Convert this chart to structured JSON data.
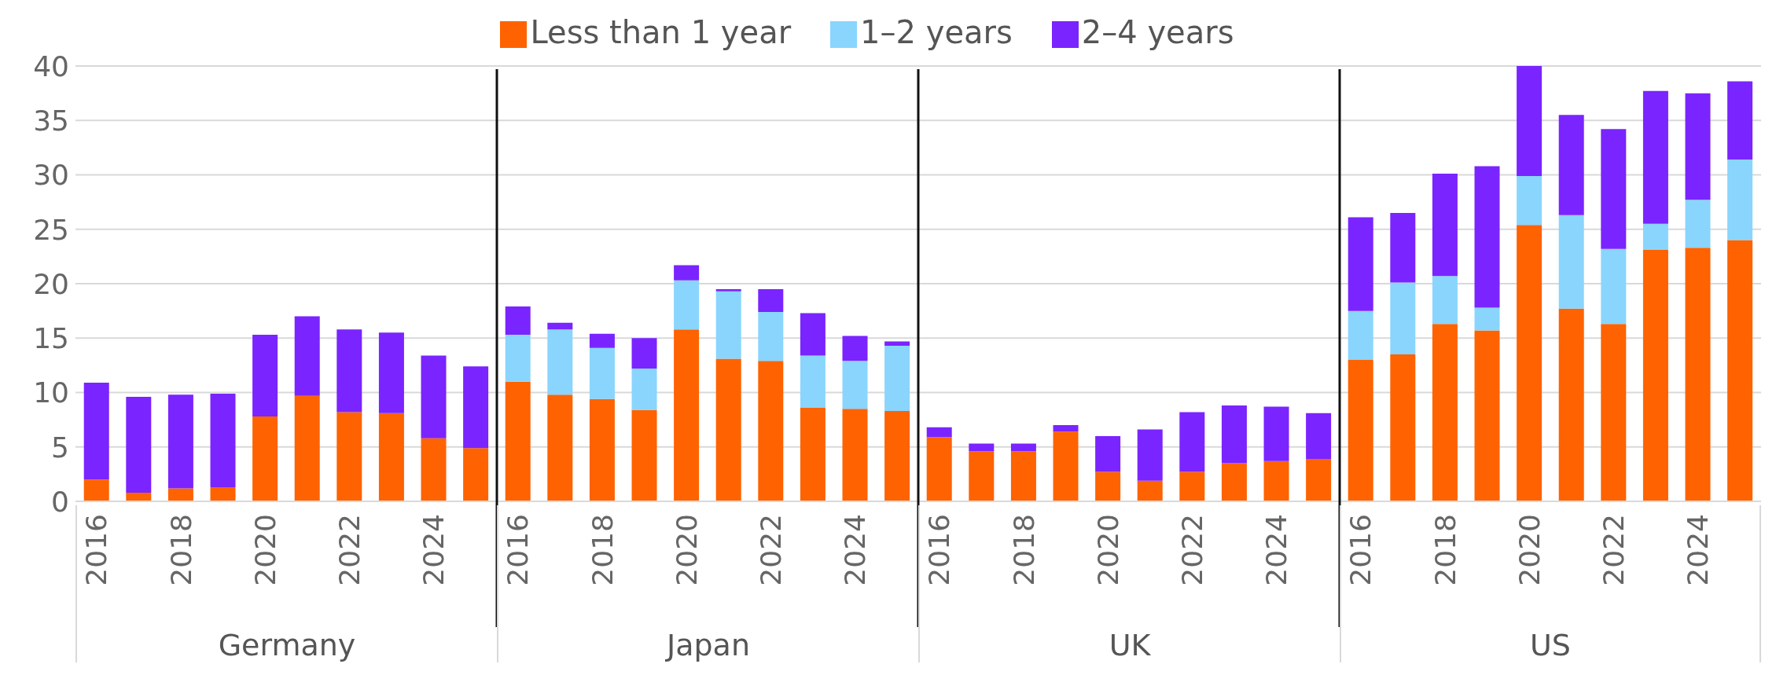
{
  "chart_data": {
    "type": "bar",
    "stacked": true,
    "categories": [
      "2016",
      null,
      "2018",
      null,
      "2020",
      null,
      "2022",
      null,
      "2024",
      null,
      "2016",
      null,
      "2018",
      null,
      "2020",
      null,
      "2022",
      null,
      "2024",
      null,
      "2016",
      null,
      "2018",
      null,
      "2020",
      null,
      "2022",
      null,
      "2024",
      null,
      "2016",
      null,
      "2018",
      null,
      "2020",
      null,
      "2022",
      null,
      "2024",
      null
    ],
    "series": [
      {
        "name": "Less than 1 year",
        "color": "#ff6200",
        "values": [
          2.0,
          0.8,
          1.2,
          1.3,
          7.8,
          9.7,
          8.2,
          8.1,
          5.8,
          4.9,
          11.0,
          9.8,
          9.4,
          8.4,
          15.8,
          13.1,
          12.9,
          8.6,
          8.5,
          8.3,
          5.9,
          4.6,
          4.6,
          6.4,
          2.7,
          1.9,
          2.7,
          3.5,
          3.7,
          3.9,
          13.0,
          13.5,
          16.3,
          15.7,
          25.4,
          17.7,
          16.3,
          23.1,
          23.3,
          24.0
        ]
      },
      {
        "name": "1–2 years",
        "color": "#89d5fd",
        "values": [
          0,
          0,
          0,
          0,
          0,
          0,
          0,
          0,
          0,
          0,
          4.3,
          6.0,
          4.7,
          3.8,
          4.5,
          6.2,
          4.5,
          4.8,
          4.4,
          6.0,
          0,
          0,
          0,
          0,
          0,
          0,
          0,
          0,
          0,
          0,
          4.5,
          6.6,
          4.4,
          2.1,
          4.5,
          8.6,
          6.9,
          2.4,
          4.4,
          7.4
        ]
      },
      {
        "name": "2–4 years",
        "color": "#7a24ff",
        "values": [
          8.9,
          8.8,
          8.6,
          8.6,
          7.5,
          7.3,
          7.6,
          7.4,
          7.6,
          7.5,
          2.6,
          0.6,
          1.3,
          2.8,
          1.4,
          0.2,
          2.1,
          3.9,
          2.3,
          0.4,
          0.9,
          0.7,
          0.7,
          0.6,
          3.3,
          4.7,
          5.5,
          5.3,
          5.0,
          4.2,
          8.6,
          6.4,
          9.4,
          13.0,
          10.1,
          9.2,
          11.0,
          12.2,
          9.8,
          7.2
        ]
      }
    ],
    "ylim": [
      0,
      40
    ],
    "yticks": [
      0,
      5,
      10,
      15,
      20,
      25,
      30,
      35,
      40
    ],
    "grid": "y",
    "legend": "top",
    "annotations": [
      "Germany",
      "Japan",
      "UK",
      "US"
    ]
  }
}
